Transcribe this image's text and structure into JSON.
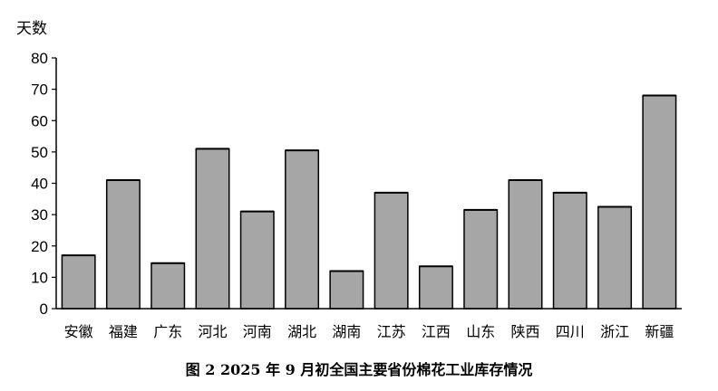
{
  "chart_data": {
    "type": "bar",
    "title": "图 2   2025 年 9 月初全国主要省份棉花工业库存情况",
    "ylabel": "天数",
    "xlabel": "",
    "ylim": [
      0,
      80
    ],
    "yticks": [
      0,
      10,
      20,
      30,
      40,
      50,
      60,
      70,
      80
    ],
    "grid": false,
    "categories": [
      "安徽",
      "福建",
      "广东",
      "河北",
      "河南",
      "湖北",
      "湖南",
      "江苏",
      "江西",
      "山东",
      "陕西",
      "四川",
      "浙江",
      "新疆"
    ],
    "values": [
      17,
      41,
      14.5,
      51,
      31,
      50.5,
      12,
      37,
      13.5,
      31.5,
      41,
      37,
      32.5,
      68
    ],
    "bar_color": "#a6a6a6",
    "bar_edge_color": "#000000"
  }
}
